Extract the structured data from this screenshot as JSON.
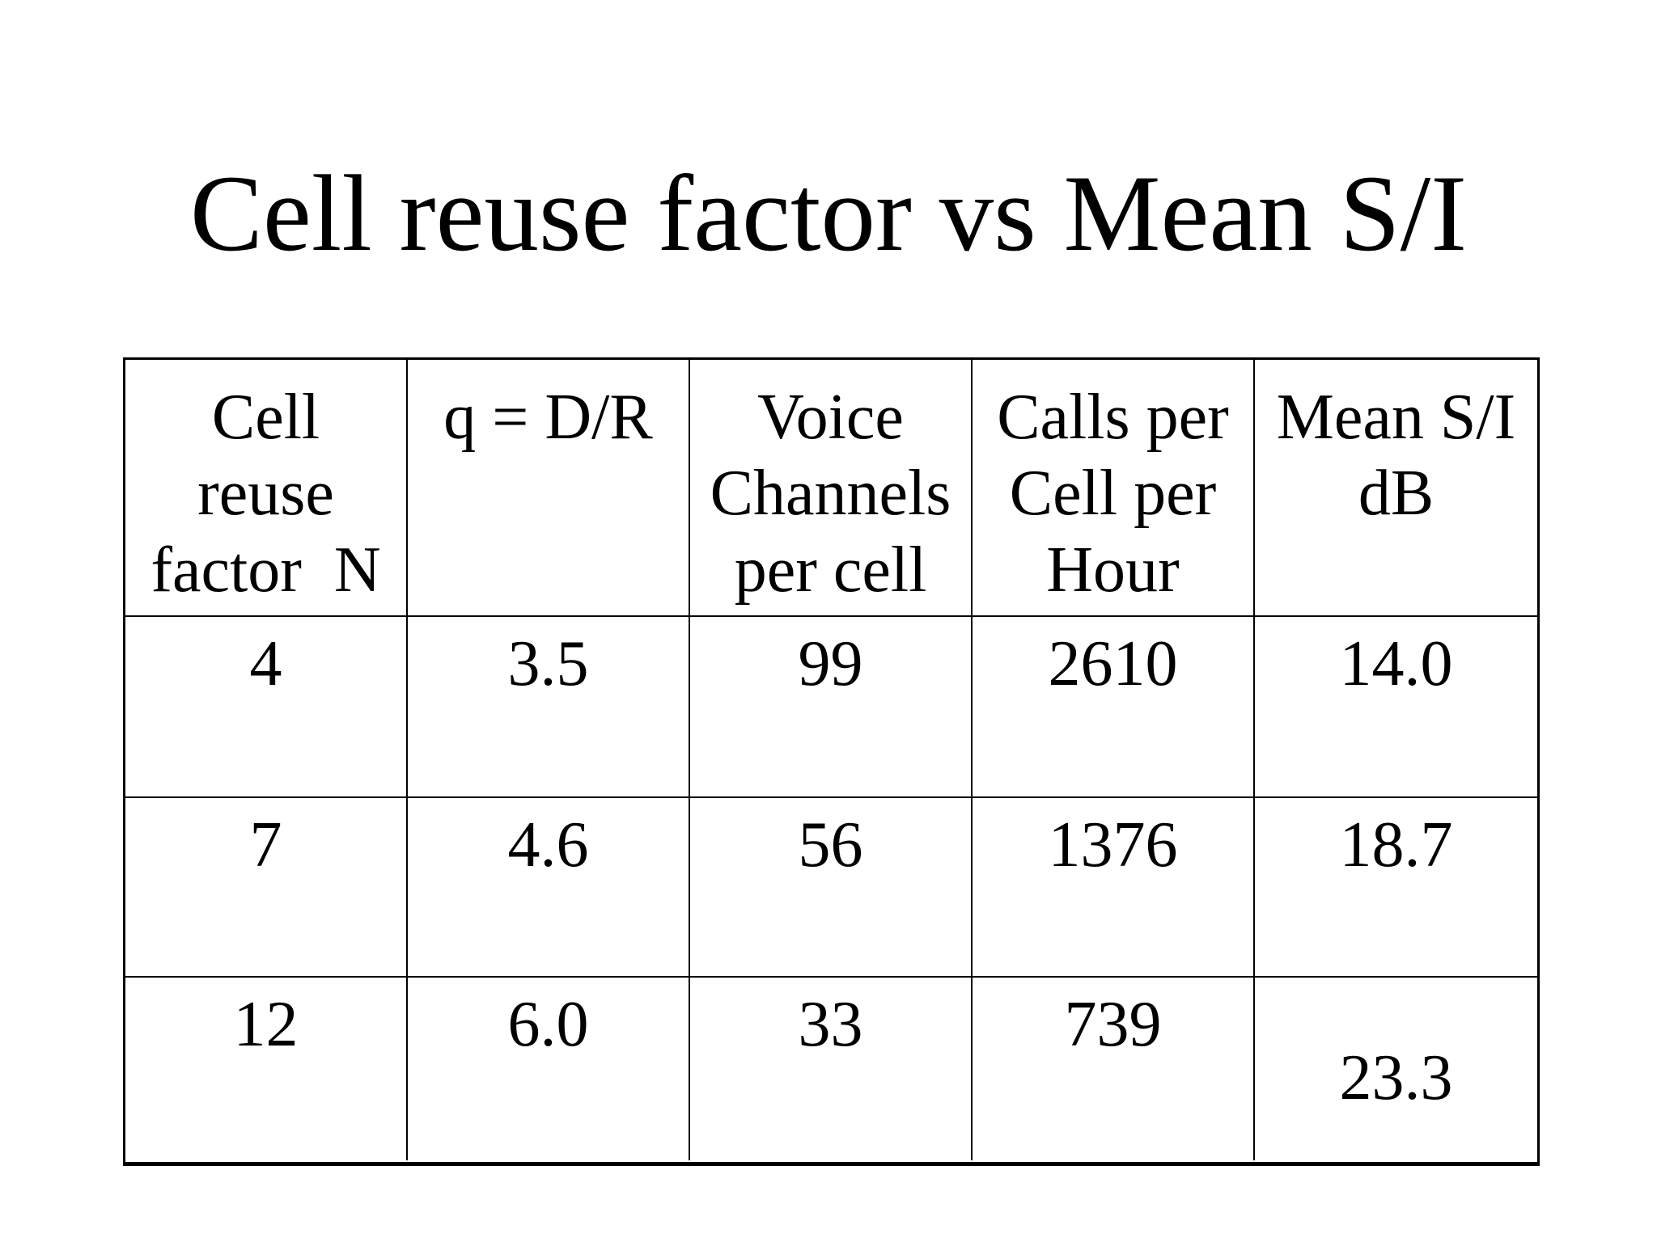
{
  "slide": {
    "title": "Cell reuse factor vs Mean S/I"
  },
  "table": {
    "headers": [
      "Cell\nreuse\nfactor  N",
      "q = D/R",
      "Voice\nChannels\nper cell",
      "Calls per\nCell per\nHour",
      "Mean S/I\ndB"
    ],
    "rows": [
      [
        "4",
        "3.5",
        "99",
        "2610",
        "14.0"
      ],
      [
        "7",
        "4.6",
        "56",
        "1376",
        "18.7"
      ],
      [
        "12",
        "6.0",
        "33",
        "739",
        "23.3"
      ]
    ]
  },
  "chart_data": {
    "type": "table",
    "title": "Cell reuse factor vs Mean S/I",
    "columns": [
      "Cell reuse factor N",
      "q = D/R",
      "Voice Channels per cell",
      "Calls per Cell per Hour",
      "Mean S/I dB"
    ],
    "rows": [
      [
        4,
        3.5,
        99,
        2610,
        14.0
      ],
      [
        7,
        4.6,
        56,
        1376,
        18.7
      ],
      [
        12,
        6.0,
        33,
        739,
        23.3
      ]
    ]
  }
}
